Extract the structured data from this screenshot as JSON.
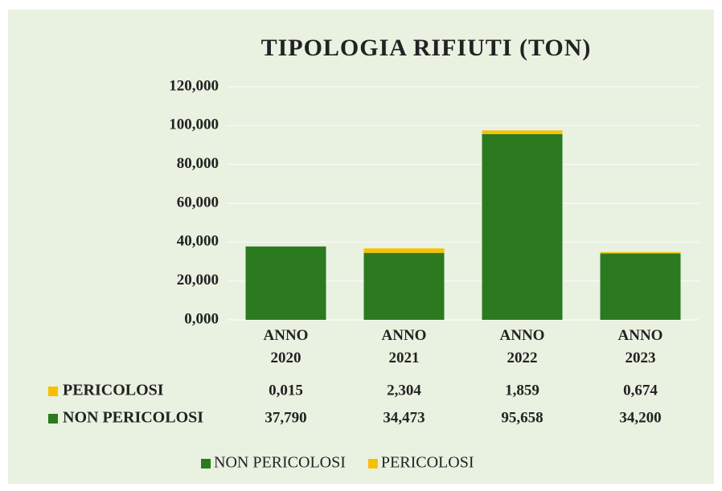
{
  "chart_data": {
    "type": "stacked_bar",
    "title": "TIPOLOGIA RIFIUTI (TON)",
    "categories": [
      "ANNO 2020",
      "ANNO 2021",
      "ANNO 2022",
      "ANNO 2023"
    ],
    "series": [
      {
        "name": "NON PERICOLOSI",
        "color": "#2b7a1f",
        "values": [
          37.79,
          34.473,
          95.658,
          34.2
        ],
        "value_labels": [
          "37,790",
          "34,473",
          "95,658",
          "34,200"
        ]
      },
      {
        "name": "PERICOLOSI",
        "color": "#f6c000",
        "values": [
          0.015,
          2.304,
          1.859,
          0.674
        ],
        "value_labels": [
          "0,015",
          "2,304",
          "1,859",
          "0,674"
        ]
      }
    ],
    "ylim": [
      0,
      120
    ],
    "yticks": [
      {
        "value": 0,
        "label": "0,000"
      },
      {
        "value": 20,
        "label": "20,000"
      },
      {
        "value": 40,
        "label": "40,000"
      },
      {
        "value": 60,
        "label": "60,000"
      },
      {
        "value": 80,
        "label": "80,000"
      },
      {
        "value": 100,
        "label": "100,000"
      },
      {
        "value": 120,
        "label": "120,000"
      }
    ],
    "grid": true,
    "legend": "bottom"
  }
}
